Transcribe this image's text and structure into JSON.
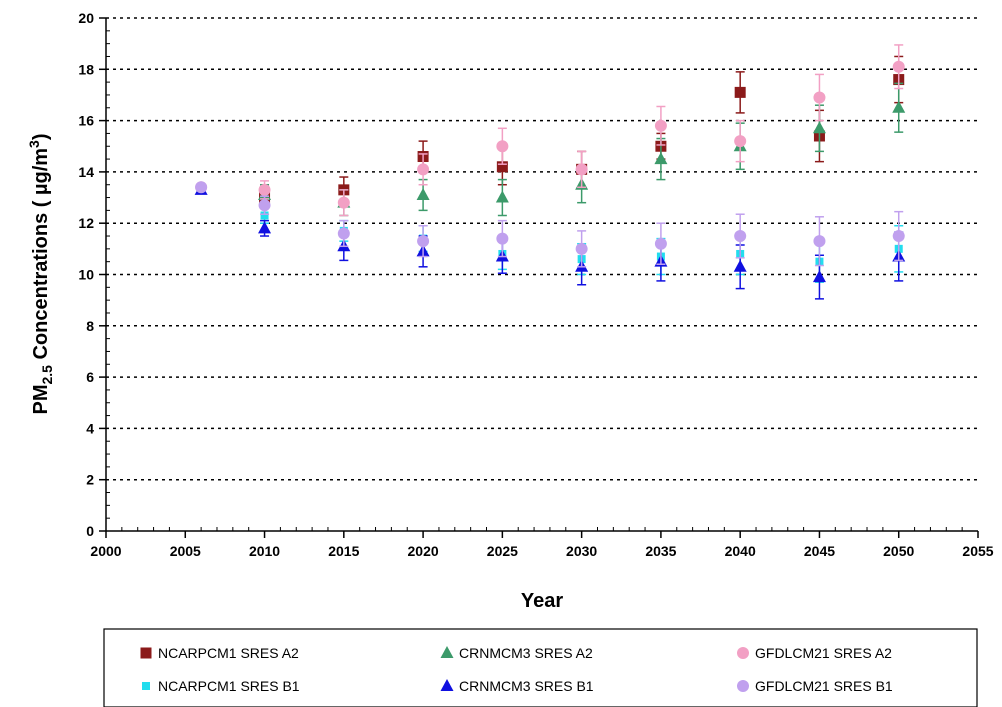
{
  "chart_data": {
    "type": "scatter",
    "xlabel": "Year",
    "ylabel": {
      "prefix": "PM",
      "subscript": "2.5",
      "middle": " Concentrations (  µg/m",
      "superscript": "3",
      "suffix": ")"
    },
    "xlim": [
      2000,
      2055
    ],
    "ylim": [
      0,
      20
    ],
    "x_ticks": [
      2000,
      2005,
      2010,
      2015,
      2020,
      2025,
      2030,
      2035,
      2040,
      2045,
      2050,
      2055
    ],
    "y_ticks": [
      0,
      2,
      4,
      6,
      8,
      10,
      12,
      14,
      16,
      18,
      20
    ],
    "grid": "horizontal-dotted",
    "legend_position": "bottom",
    "error_bars": true,
    "series": [
      {
        "name": "NCARPCM1 SRES A2",
        "marker": "square",
        "color": "#8B1A1A",
        "x": [
          2010,
          2015,
          2020,
          2025,
          2030,
          2035,
          2040,
          2045,
          2050
        ],
        "y": [
          13.0,
          13.3,
          14.6,
          14.2,
          14.1,
          15.0,
          17.1,
          15.4,
          17.6
        ],
        "err": [
          0.35,
          0.5,
          0.6,
          0.7,
          0.7,
          0.5,
          0.8,
          1.0,
          0.9
        ]
      },
      {
        "name": "CRNMCM3 SRES A2",
        "marker": "triangle",
        "color": "#3C9A6A",
        "x": [
          2010,
          2015,
          2020,
          2025,
          2030,
          2035,
          2040,
          2045,
          2050
        ],
        "y": [
          13.1,
          12.8,
          13.1,
          13.0,
          13.5,
          14.5,
          15.0,
          15.7,
          16.5
        ],
        "err": [
          0.4,
          0.5,
          0.6,
          0.7,
          0.7,
          0.8,
          0.9,
          0.9,
          0.95
        ]
      },
      {
        "name": "GFDLCM21 SRES A2",
        "marker": "circle",
        "color": "#F2A0C4",
        "x": [
          2006,
          2010,
          2015,
          2020,
          2025,
          2030,
          2035,
          2040,
          2045,
          2050
        ],
        "y": [
          13.4,
          13.3,
          12.8,
          14.1,
          15.0,
          14.1,
          15.8,
          15.2,
          16.9,
          18.1
        ],
        "err": [
          0.1,
          0.35,
          0.5,
          0.6,
          0.7,
          0.7,
          0.75,
          0.8,
          0.9,
          0.85
        ]
      },
      {
        "name": "NCARPCM1 SRES B1",
        "marker": "square-small",
        "color": "#22DDEE",
        "x": [
          2010,
          2015,
          2020,
          2025,
          2030,
          2035,
          2040,
          2045,
          2050
        ],
        "y": [
          12.3,
          11.7,
          11.4,
          10.8,
          10.6,
          10.7,
          10.8,
          10.5,
          11.0
        ],
        "err": [
          0.3,
          0.4,
          0.5,
          0.6,
          0.6,
          0.7,
          0.8,
          0.8,
          0.9
        ]
      },
      {
        "name": "CRNMCM3 SRES B1",
        "marker": "triangle",
        "color": "#1010E0",
        "x": [
          2006,
          2010,
          2015,
          2020,
          2025,
          2030,
          2035,
          2040,
          2045,
          2050
        ],
        "y": [
          13.3,
          11.8,
          11.1,
          10.9,
          10.7,
          10.3,
          10.5,
          10.3,
          9.9,
          10.7
        ],
        "err": [
          0.1,
          0.3,
          0.55,
          0.6,
          0.65,
          0.7,
          0.75,
          0.85,
          0.85,
          0.95
        ]
      },
      {
        "name": "GFDLCM21 SRES B1",
        "marker": "circle",
        "color": "#C0A0EE",
        "x": [
          2006,
          2010,
          2015,
          2020,
          2025,
          2030,
          2035,
          2040,
          2045,
          2050
        ],
        "y": [
          13.4,
          12.7,
          11.6,
          11.3,
          11.4,
          11.0,
          11.2,
          11.5,
          11.3,
          11.5
        ],
        "err": [
          0.1,
          0.35,
          0.5,
          0.6,
          0.7,
          0.7,
          0.8,
          0.85,
          0.95,
          0.95
        ]
      }
    ]
  }
}
